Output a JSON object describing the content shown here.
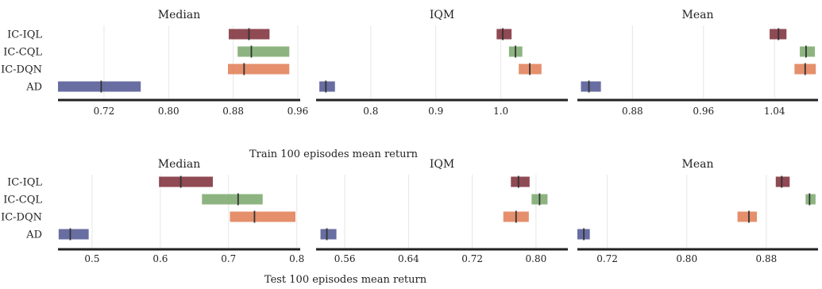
{
  "figure": {
    "rows": [
      {
        "xlabel": "Train 100 episodes mean return"
      },
      {
        "xlabel": "Test 100 episodes mean return"
      }
    ]
  },
  "colors": {
    "IC-IQL": "#7b2a35",
    "IC-CQL": "#79a76a",
    "IC-DQN": "#e07b52",
    "AD": "#4e5590",
    "axis": "#222222",
    "grid": "#e6e6e6",
    "median_line": "#333333"
  },
  "chart_data": [
    {
      "type": "interval",
      "row": 0,
      "col": 0,
      "title": "Median",
      "categories": [
        "IC-IQL",
        "IC-CQL",
        "IC-DQN",
        "AD"
      ],
      "xlim": [
        0.663,
        0.963
      ],
      "xticks": [
        0.72,
        0.8,
        0.88,
        0.96
      ],
      "xtick_labels": [
        "0.72",
        "0.80",
        "0.88",
        "0.96"
      ],
      "grid": true,
      "series": [
        {
          "category": "IC-IQL",
          "low": 0.8745,
          "point": 0.8995,
          "high": 0.925
        },
        {
          "category": "IC-CQL",
          "low": 0.8855,
          "point": 0.9025,
          "high": 0.9495
        },
        {
          "category": "IC-DQN",
          "low": 0.8735,
          "point": 0.8935,
          "high": 0.9495
        },
        {
          "category": "AD",
          "low": 0.663,
          "point": 0.7165,
          "high": 0.7655
        }
      ]
    },
    {
      "type": "interval",
      "row": 0,
      "col": 1,
      "title": "IQM",
      "categories": [
        "IC-IQL",
        "IC-CQL",
        "IC-DQN",
        "AD"
      ],
      "xlim": [
        0.716,
        1.103
      ],
      "xticks": [
        0.8,
        0.9,
        1.0
      ],
      "xtick_labels": [
        "0.8",
        "0.9",
        "1.0"
      ],
      "grid": true,
      "series": [
        {
          "category": "IC-IQL",
          "low": 0.9935,
          "point": 1.003,
          "high": 1.0165
        },
        {
          "category": "IC-CQL",
          "low": 1.0125,
          "point": 1.0225,
          "high": 1.033
        },
        {
          "category": "IC-DQN",
          "low": 1.0275,
          "point": 1.0445,
          "high": 1.0625
        },
        {
          "category": "AD",
          "low": 0.721,
          "point": 0.731,
          "high": 0.745
        }
      ]
    },
    {
      "type": "interval",
      "row": 0,
      "col": 2,
      "title": "Mean",
      "categories": [
        "IC-IQL",
        "IC-CQL",
        "IC-DQN",
        "AD"
      ],
      "xlim": [
        0.818,
        1.089
      ],
      "xticks": [
        0.88,
        0.96,
        1.04
      ],
      "xtick_labels": [
        "0.88",
        "0.96",
        "1.04"
      ],
      "grid": true,
      "series": [
        {
          "category": "IC-IQL",
          "low": 1.0345,
          "point": 1.0445,
          "high": 1.0535
        },
        {
          "category": "IC-CQL",
          "low": 1.0685,
          "point": 1.0755,
          "high": 1.0855
        },
        {
          "category": "IC-DQN",
          "low": 1.0625,
          "point": 1.0745,
          "high": 1.0865
        },
        {
          "category": "AD",
          "low": 0.822,
          "point": 0.831,
          "high": 0.8445
        }
      ]
    },
    {
      "type": "interval",
      "row": 1,
      "col": 0,
      "title": "Median",
      "categories": [
        "IC-IQL",
        "IC-CQL",
        "IC-DQN",
        "AD"
      ],
      "xlim": [
        0.45,
        0.805
      ],
      "xticks": [
        0.5,
        0.6,
        0.7,
        0.8
      ],
      "xtick_labels": [
        "0.5",
        "0.6",
        "0.7",
        "0.8"
      ],
      "grid": true,
      "series": [
        {
          "category": "IC-IQL",
          "low": 0.598,
          "point": 0.63,
          "high": 0.677
        },
        {
          "category": "IC-CQL",
          "low": 0.661,
          "point": 0.714,
          "high": 0.75
        },
        {
          "category": "IC-DQN",
          "low": 0.702,
          "point": 0.738,
          "high": 0.798
        },
        {
          "category": "AD",
          "low": 0.451,
          "point": 0.468,
          "high": 0.495
        }
      ]
    },
    {
      "type": "interval",
      "row": 1,
      "col": 1,
      "title": "IQM",
      "categories": [
        "IC-IQL",
        "IC-CQL",
        "IC-DQN",
        "AD"
      ],
      "xlim": [
        0.524,
        0.84
      ],
      "xticks": [
        0.56,
        0.64,
        0.72,
        0.8
      ],
      "xtick_labels": [
        "0.56",
        "0.64",
        "0.72",
        "0.80"
      ],
      "grid": true,
      "series": [
        {
          "category": "IC-IQL",
          "low": 0.7685,
          "point": 0.778,
          "high": 0.792
        },
        {
          "category": "IC-CQL",
          "low": 0.7945,
          "point": 0.8045,
          "high": 0.8145
        },
        {
          "category": "IC-DQN",
          "low": 0.759,
          "point": 0.775,
          "high": 0.791
        },
        {
          "category": "AD",
          "low": 0.5295,
          "point": 0.5375,
          "high": 0.5495
        }
      ]
    },
    {
      "type": "interval",
      "row": 1,
      "col": 2,
      "title": "Mean",
      "categories": [
        "IC-IQL",
        "IC-CQL",
        "IC-DQN",
        "AD"
      ],
      "xlim": [
        0.69,
        0.932
      ],
      "xticks": [
        0.72,
        0.8,
        0.88
      ],
      "xtick_labels": [
        "0.72",
        "0.80",
        "0.88"
      ],
      "grid": true,
      "series": [
        {
          "category": "IC-IQL",
          "low": 0.8895,
          "point": 0.8955,
          "high": 0.9035
        },
        {
          "category": "IC-CQL",
          "low": 0.9195,
          "point": 0.9235,
          "high": 0.9295
        },
        {
          "category": "IC-DQN",
          "low": 0.851,
          "point": 0.8625,
          "high": 0.8705
        },
        {
          "category": "AD",
          "low": 0.69,
          "point": 0.6965,
          "high": 0.7025
        }
      ]
    }
  ]
}
